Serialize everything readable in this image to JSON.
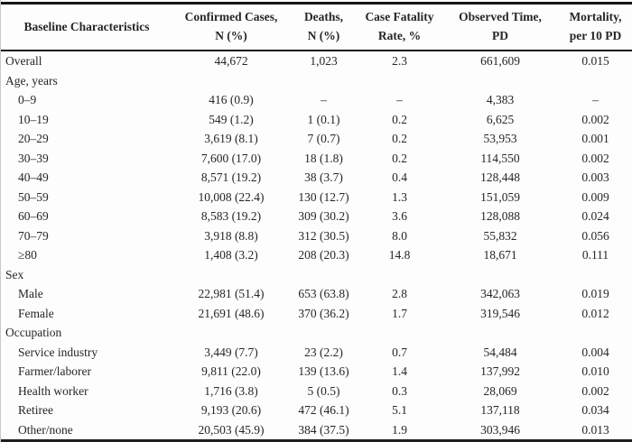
{
  "colors": {
    "background": "#fdfdfd",
    "text": "#262626",
    "rule": "#161616",
    "left_edge_line": "#c9c9c9"
  },
  "table": {
    "header": [
      {
        "line1": "Baseline Characteristics",
        "line2": ""
      },
      {
        "line1": "Confirmed Cases,",
        "line2": "N (%)"
      },
      {
        "line1": "Deaths,",
        "line2": "N (%)"
      },
      {
        "line1": "Case Fatality",
        "line2": "Rate, %"
      },
      {
        "line1": "Observed Time,",
        "line2": "PD"
      },
      {
        "line1": "Mortality,",
        "line2": "per 10 PD"
      }
    ],
    "rows": [
      {
        "label": "Overall",
        "indent": false,
        "section": false,
        "values": [
          "44,672",
          "1,023",
          "2.3",
          "661,609",
          "0.015"
        ]
      },
      {
        "label": "Age, years",
        "indent": false,
        "section": true,
        "values": [
          "",
          "",
          "",
          "",
          ""
        ]
      },
      {
        "label": "0–9",
        "indent": true,
        "section": false,
        "values": [
          "416 (0.9)",
          "–",
          "–",
          "4,383",
          "–"
        ]
      },
      {
        "label": "10–19",
        "indent": true,
        "section": false,
        "values": [
          "549 (1.2)",
          "1 (0.1)",
          "0.2",
          "6,625",
          "0.002"
        ]
      },
      {
        "label": "20–29",
        "indent": true,
        "section": false,
        "values": [
          "3,619 (8.1)",
          "7 (0.7)",
          "0.2",
          "53,953",
          "0.001"
        ]
      },
      {
        "label": "30–39",
        "indent": true,
        "section": false,
        "values": [
          "7,600 (17.0)",
          "18 (1.8)",
          "0.2",
          "114,550",
          "0.002"
        ]
      },
      {
        "label": "40–49",
        "indent": true,
        "section": false,
        "values": [
          "8,571 (19.2)",
          "38 (3.7)",
          "0.4",
          "128,448",
          "0.003"
        ]
      },
      {
        "label": "50–59",
        "indent": true,
        "section": false,
        "values": [
          "10,008 (22.4)",
          "130 (12.7)",
          "1.3",
          "151,059",
          "0.009"
        ]
      },
      {
        "label": "60–69",
        "indent": true,
        "section": false,
        "values": [
          "8,583 (19.2)",
          "309 (30.2)",
          "3.6",
          "128,088",
          "0.024"
        ]
      },
      {
        "label": "70–79",
        "indent": true,
        "section": false,
        "values": [
          "3,918 (8.8)",
          "312 (30.5)",
          "8.0",
          "55,832",
          "0.056"
        ]
      },
      {
        "label": "≥80",
        "indent": true,
        "section": false,
        "values": [
          "1,408 (3.2)",
          "208 (20.3)",
          "14.8",
          "18,671",
          "0.111"
        ]
      },
      {
        "label": "Sex",
        "indent": false,
        "section": true,
        "values": [
          "",
          "",
          "",
          "",
          ""
        ]
      },
      {
        "label": "Male",
        "indent": true,
        "section": false,
        "values": [
          "22,981 (51.4)",
          "653 (63.8)",
          "2.8",
          "342,063",
          "0.019"
        ]
      },
      {
        "label": "Female",
        "indent": true,
        "section": false,
        "values": [
          "21,691 (48.6)",
          "370 (36.2)",
          "1.7",
          "319,546",
          "0.012"
        ]
      },
      {
        "label": "Occupation",
        "indent": false,
        "section": true,
        "values": [
          "",
          "",
          "",
          "",
          ""
        ]
      },
      {
        "label": "Service industry",
        "indent": true,
        "section": false,
        "values": [
          "3,449 (7.7)",
          "23 (2.2)",
          "0.7",
          "54,484",
          "0.004"
        ]
      },
      {
        "label": "Farmer/laborer",
        "indent": true,
        "section": false,
        "values": [
          "9,811 (22.0)",
          "139 (13.6)",
          "1.4",
          "137,992",
          "0.010"
        ]
      },
      {
        "label": "Health worker",
        "indent": true,
        "section": false,
        "values": [
          "1,716 (3.8)",
          "5 (0.5)",
          "0.3",
          "28,069",
          "0.002"
        ]
      },
      {
        "label": "Retiree",
        "indent": true,
        "section": false,
        "values": [
          "9,193 (20.6)",
          "472 (46.1)",
          "5.1",
          "137,118",
          "0.034"
        ]
      },
      {
        "label": "Other/none",
        "indent": true,
        "section": false,
        "values": [
          "20,503 (45.9)",
          "384 (37.5)",
          "1.9",
          "303,946",
          "0.013"
        ]
      }
    ]
  }
}
